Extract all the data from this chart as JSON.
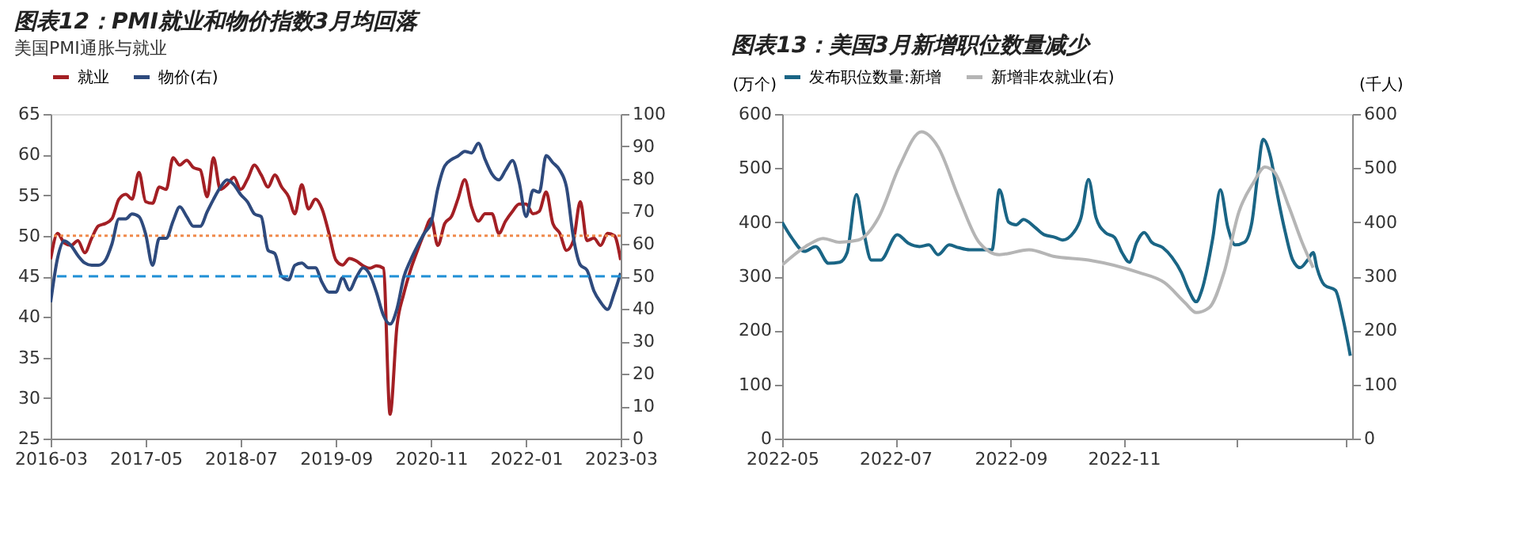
{
  "chart_data": [
    {
      "type": "line",
      "title": "图表12：PMI就业和物价指数3月均回落",
      "subtitle": "美国PMI通胀与就业",
      "legend": "top",
      "line_style": "solid",
      "x": [
        "2016-03",
        "2016-04",
        "2016-05",
        "2016-06",
        "2016-07",
        "2016-08",
        "2016-09",
        "2016-10",
        "2016-11",
        "2016-12",
        "2017-01",
        "2017-02",
        "2017-03",
        "2017-04",
        "2017-05",
        "2017-06",
        "2017-07",
        "2017-08",
        "2017-09",
        "2017-10",
        "2017-11",
        "2017-12",
        "2018-01",
        "2018-02",
        "2018-03",
        "2018-04",
        "2018-05",
        "2018-06",
        "2018-07",
        "2018-08",
        "2018-09",
        "2018-10",
        "2018-11",
        "2018-12",
        "2019-01",
        "2019-02",
        "2019-03",
        "2019-04",
        "2019-05",
        "2019-06",
        "2019-07",
        "2019-08",
        "2019-09",
        "2019-10",
        "2019-11",
        "2019-12",
        "2020-01",
        "2020-02",
        "2020-03",
        "2020-04",
        "2020-05",
        "2020-06",
        "2020-07",
        "2020-08",
        "2020-09",
        "2020-10",
        "2020-11",
        "2020-12",
        "2021-01",
        "2021-02",
        "2021-03",
        "2021-04",
        "2021-05",
        "2021-06",
        "2021-07",
        "2021-08",
        "2021-09",
        "2021-10",
        "2021-11",
        "2021-12",
        "2022-01",
        "2022-02",
        "2022-03",
        "2022-04",
        "2022-05",
        "2022-06",
        "2022-07",
        "2022-08",
        "2022-09",
        "2022-10",
        "2022-11",
        "2022-12",
        "2023-01",
        "2023-02",
        "2023-03"
      ],
      "series": [
        {
          "name": "就业",
          "color": "#a31f24",
          "values": [
            47.1,
            50.3,
            49.1,
            48.8,
            49.4,
            47.9,
            49.7,
            51.2,
            51.5,
            52.1,
            54.5,
            55.1,
            54.5,
            57.8,
            54.2,
            54,
            56,
            55.7,
            59.6,
            58.7,
            59.3,
            58.4,
            58.1,
            54.8,
            59.6,
            55.7,
            56.3,
            57.2,
            55.7,
            57,
            58.7,
            57.5,
            56,
            57.5,
            56,
            54.8,
            52.7,
            56.3,
            53.3,
            54.5,
            53.3,
            50.3,
            47,
            46.4,
            47.2,
            46.9,
            46.3,
            46,
            46.3,
            46,
            28,
            38.9,
            42.8,
            45.8,
            48.2,
            50.3,
            52.1,
            48.8,
            51.5,
            52.4,
            54.5,
            56.9,
            53.6,
            51.8,
            52.7,
            52.7,
            50.3,
            51.8,
            53,
            53.9,
            53.9,
            52.7,
            53,
            55.4,
            51.5,
            50.3,
            48.2,
            49.4,
            54.2,
            49.4,
            49.7,
            48.8,
            50.3,
            50,
            47
          ]
        },
        {
          "name": "物价(右)",
          "color": "#2e4a7d",
          "axis": "y2",
          "values": [
            42,
            55.6,
            60.9,
            59.4,
            56.4,
            54.1,
            53.4,
            53.4,
            54.9,
            60,
            67.7,
            67.7,
            69.2,
            68.4,
            63,
            53.4,
            61.7,
            61.7,
            67,
            71.4,
            68.4,
            65.4,
            65.4,
            69.9,
            73.7,
            77.4,
            79.7,
            78.2,
            75.2,
            72.9,
            69.2,
            68.4,
            58,
            57,
            50,
            48.9,
            53.4,
            54.1,
            52.6,
            52.6,
            48.1,
            45.1,
            45.1,
            49.6,
            45.8,
            49.6,
            52.6,
            50.4,
            45,
            38,
            35.3,
            40,
            49.6,
            55,
            59.4,
            63.2,
            66.5,
            77,
            84,
            86,
            87,
            88.5,
            88,
            91,
            86,
            81.5,
            79.7,
            82.7,
            85.7,
            79,
            68.4,
            76.5,
            75.9,
            87.2,
            85,
            82.7,
            77.5,
            62,
            53.5,
            51.9,
            45.5,
            42,
            39.8,
            45,
            51
          ]
        }
      ],
      "xlim": [
        "2016-03",
        "2023-03"
      ],
      "xticks": [
        "2016-03",
        "2017-05",
        "2018-07",
        "2019-09",
        "2020-11",
        "2022-01",
        "2023-03"
      ],
      "ylim": [
        25,
        65
      ],
      "yticks": [
        25,
        30,
        35,
        40,
        45,
        50,
        55,
        60,
        65
      ],
      "y2lim": [
        0,
        100
      ],
      "y2ticks": [
        0,
        10,
        20,
        30,
        40,
        50,
        60,
        70,
        80,
        90,
        100
      ],
      "ref_lines": [
        {
          "axis": "y",
          "value": 50,
          "color": "#f08a4b",
          "line_style": "dotted"
        },
        {
          "axis": "y2",
          "value": 50,
          "color": "#1f8fd6",
          "line_style": "dashed"
        }
      ]
    },
    {
      "type": "line",
      "title": "图表13：美国3月新增职位数量减少",
      "ylabel": "(万个)",
      "y2label": "(千人)",
      "legend": "top",
      "line_style": "solid",
      "series": [
        {
          "name": "发布职位数量:新增",
          "color": "#1a6585",
          "x": [
            "2022-05-01",
            "2022-05-06",
            "2022-05-13",
            "2022-05-19",
            "2022-05-26",
            "2022-06-01",
            "2022-06-05",
            "2022-06-10",
            "2022-06-14",
            "2022-06-18",
            "2022-06-23",
            "2022-07-02",
            "2022-07-08",
            "2022-07-14",
            "2022-07-19",
            "2022-07-24",
            "2022-07-30",
            "2022-08-04",
            "2022-08-10",
            "2022-08-16",
            "2022-08-22",
            "2022-08-26",
            "2022-08-31",
            "2022-09-04",
            "2022-09-08",
            "2022-09-14",
            "2022-09-19",
            "2022-09-25",
            "2022-09-29",
            "2022-10-05",
            "2022-10-09",
            "2022-10-13",
            "2022-10-17",
            "2022-10-22",
            "2022-10-27",
            "2022-10-31",
            "2022-11-04",
            "2022-11-08",
            "2022-11-12",
            "2022-11-16",
            "2022-11-22",
            "2022-11-27",
            "2022-12-02",
            "2022-12-06",
            "2022-12-10",
            "2022-12-13",
            "2022-12-19",
            "2022-12-23",
            "2022-12-27",
            "2022-12-31",
            "2023-01-05",
            "2023-01-09",
            "2023-01-12",
            "2023-01-15",
            "2023-01-19",
            "2023-01-23",
            "2023-01-27",
            "2023-01-31",
            "2023-02-04",
            "2023-02-08",
            "2023-02-11",
            "2023-02-13",
            "2023-02-17",
            "2023-02-23",
            "2023-02-27",
            "2023-03-03"
          ],
          "values": [
            400,
            372,
            346,
            355,
            324,
            326,
            344,
            451,
            381,
            330,
            330,
            377,
            361,
            355,
            358,
            340,
            358,
            353,
            349,
            349,
            349,
            460,
            400,
            395,
            405,
            391,
            377,
            372,
            367,
            381,
            409,
            479,
            409,
            381,
            372,
            344,
            326,
            363,
            381,
            363,
            353,
            335,
            307,
            274,
            253,
            274,
            372,
            460,
            391,
            358,
            363,
            400,
            484,
            553,
            521,
            446,
            381,
            330,
            316,
            330,
            344,
            316,
            284,
            274,
            223,
            153
          ]
        },
        {
          "name": "新增非农就业(右)",
          "color": "#b5b5b5",
          "axis": "y2",
          "x": [
            "2022-05-01",
            "2022-05-15",
            "2022-05-23",
            "2022-06-01",
            "2022-06-11",
            "2022-06-22",
            "2022-07-03",
            "2022-07-15",
            "2022-07-24",
            "2022-08-04",
            "2022-08-15",
            "2022-08-26",
            "2022-09-11",
            "2022-09-24",
            "2022-10-13",
            "2022-11-09",
            "2022-11-23",
            "2022-12-04",
            "2022-12-10",
            "2022-12-17",
            "2022-12-25",
            "2023-01-02",
            "2023-01-10",
            "2023-01-16",
            "2023-01-21",
            "2023-01-29",
            "2023-02-05",
            "2023-02-11"
          ],
          "values": [
            321,
            358,
            370,
            363,
            367,
            409,
            502,
            567,
            539,
            446,
            363,
            340,
            349,
            337,
            330,
            307,
            288,
            251,
            233,
            242,
            307,
            419,
            474,
            502,
            493,
            428,
            363,
            316
          ]
        }
      ],
      "xlim": [
        "2022-05-01",
        "2023-03-04"
      ],
      "xticks": [
        "2022-05",
        "2022-07",
        "2022-09",
        "2022-11",
        {
          "value": "2023-01",
          "label": null
        },
        {
          "value": "2023-03",
          "label": null
        }
      ],
      "ylim": [
        0,
        600
      ],
      "yticks": [
        0,
        100,
        200,
        300,
        400,
        500,
        600
      ],
      "y2lim": [
        0,
        600
      ],
      "y2ticks": [
        0,
        100,
        200,
        300,
        400,
        500,
        600
      ]
    }
  ]
}
